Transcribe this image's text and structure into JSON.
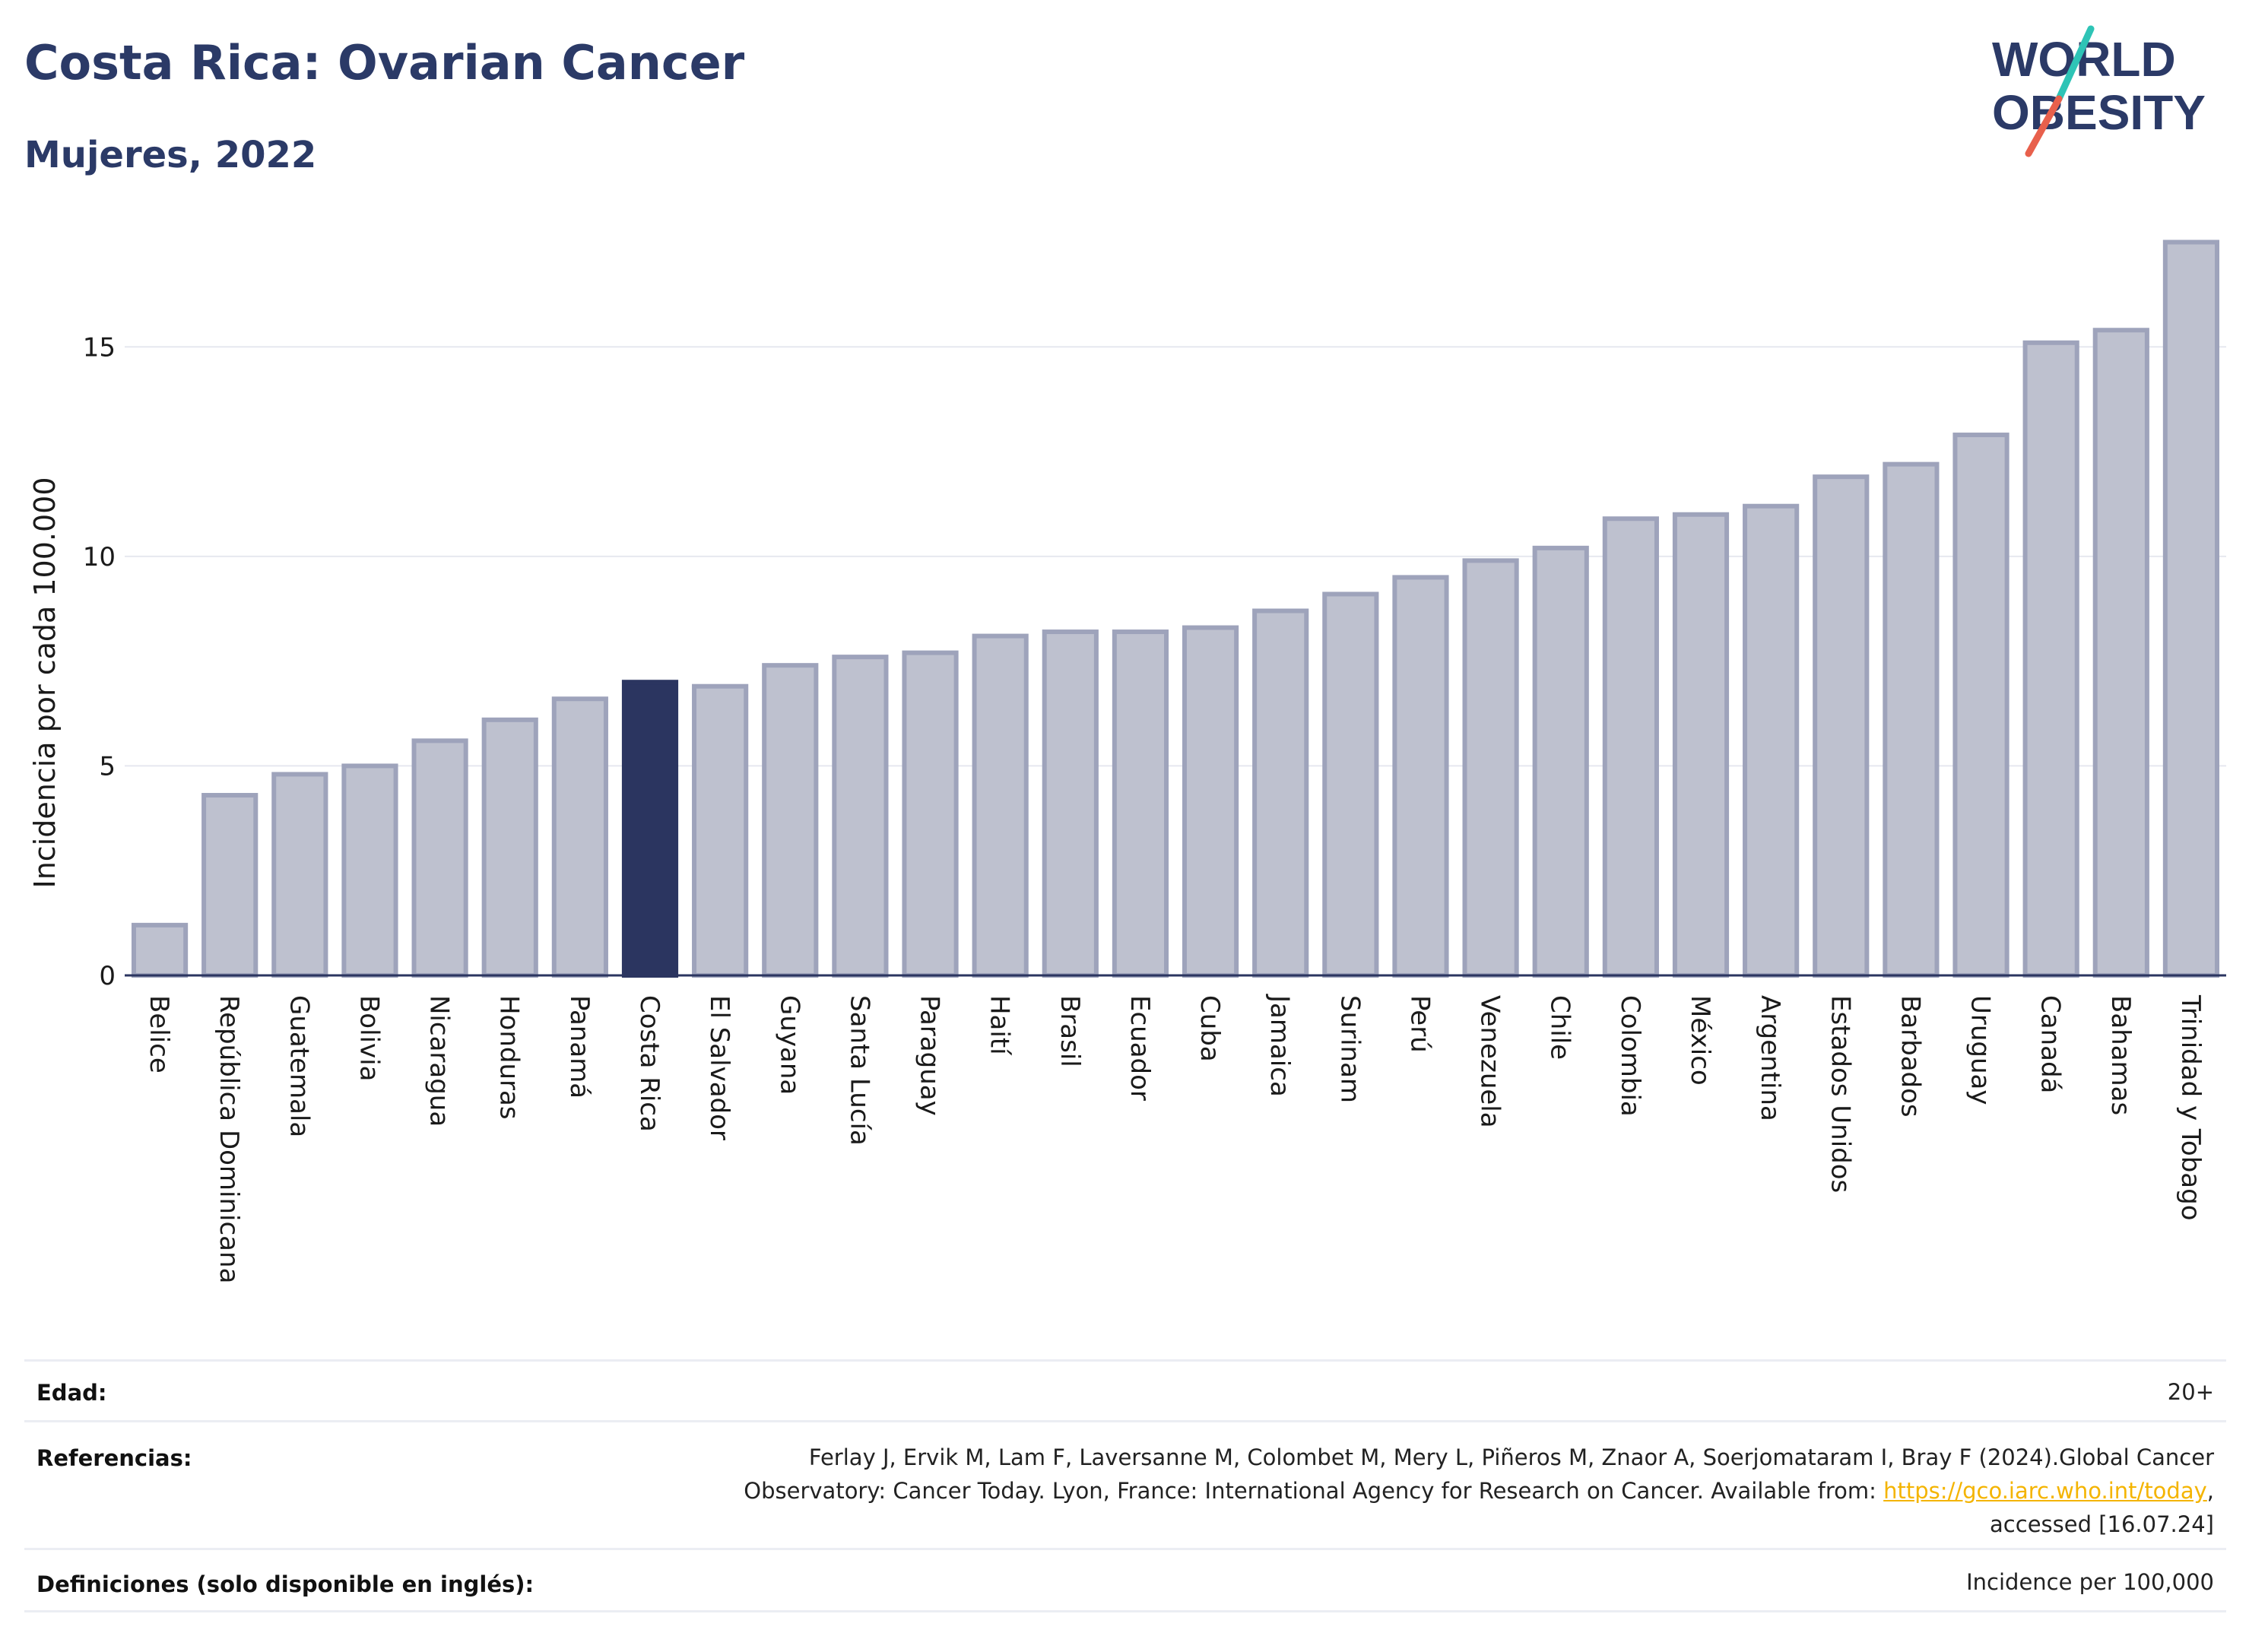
{
  "header": {
    "title": "Costa Rica: Ovarian Cancer",
    "subtitle": "Mujeres, 2022"
  },
  "logo": {
    "line1": "WORLD",
    "line2": "OBESITY",
    "accent_colors": [
      "#2ec4b6",
      "#e8604c"
    ]
  },
  "colors": {
    "bar": "#bec1cf",
    "bar_stroke": "#9ea3bb",
    "highlight": "#2b3560",
    "grid": "#e6e8ef",
    "axis": "#2b3560",
    "title": "#2b3a67"
  },
  "chart_data": {
    "type": "bar",
    "title": "Costa Rica: Ovarian Cancer",
    "subtitle": "Mujeres, 2022",
    "ylabel": "Incidencia por cada 100.000",
    "xlabel": "",
    "ylim": [
      0,
      17.6
    ],
    "yticks": [
      0,
      5,
      10,
      15
    ],
    "grid": true,
    "highlight": "Costa Rica",
    "categories": [
      "Belice",
      "República Dominicana",
      "Guatemala",
      "Bolivia",
      "Nicaragua",
      "Honduras",
      "Panamá",
      "Costa Rica",
      "El Salvador",
      "Guyana",
      "Santa Lucía",
      "Paraguay",
      "Haití",
      "Brasil",
      "Ecuador",
      "Cuba",
      "Jamaica",
      "Surinam",
      "Perú",
      "Venezuela",
      "Chile",
      "Colombia",
      "México",
      "Argentina",
      "Estados Unidos",
      "Barbados",
      "Uruguay",
      "Canadá",
      "Bahamas",
      "Trinidad y Tobago"
    ],
    "values": [
      1.2,
      4.3,
      4.8,
      5.0,
      5.6,
      6.1,
      6.6,
      7.0,
      6.9,
      7.4,
      7.6,
      7.7,
      8.1,
      8.2,
      8.2,
      8.3,
      8.7,
      9.1,
      9.5,
      9.9,
      10.2,
      10.9,
      11.0,
      11.2,
      11.9,
      12.2,
      12.9,
      15.1,
      15.4,
      17.5
    ]
  },
  "footer": {
    "edad_label": "Edad:",
    "edad_value": "20+",
    "ref_label": "Referencias:",
    "ref_line1": "Ferlay J, Ervik M, Lam F, Laversanne M, Colombet M, Mery L, Piñeros M, Znaor A, Soerjomataram I, Bray F (2024).Global Cancer",
    "ref_line2_pre": "Observatory: Cancer Today. Lyon, France: International Agency for Research on Cancer. Available from: ",
    "ref_link": "https://gco.iarc.who.int/today",
    "ref_line2_post": ",",
    "ref_line3": "accessed [16.07.24]",
    "def_label": "Definiciones (solo disponible en inglés):",
    "def_value": "Incidence per 100,000"
  }
}
